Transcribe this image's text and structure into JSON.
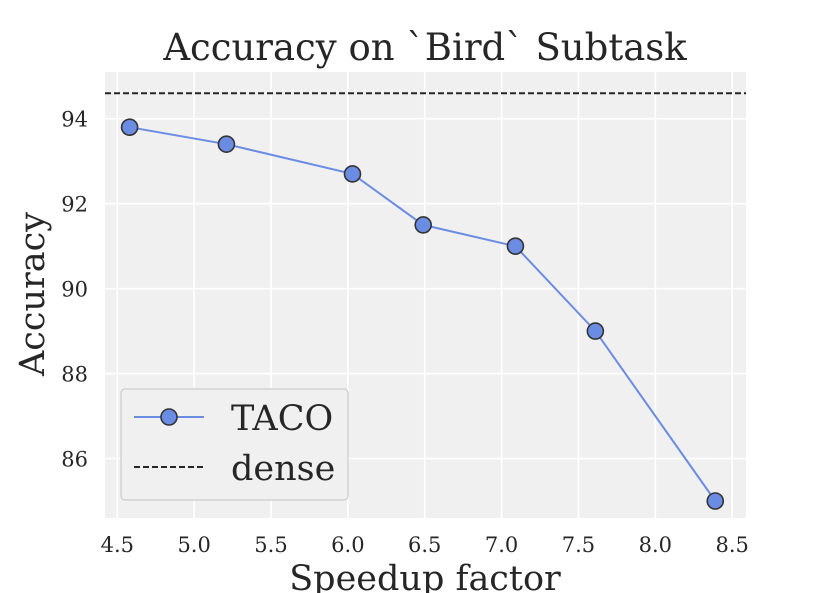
{
  "chart_data": {
    "type": "line",
    "title": "Accuracy on `Bird` Subtask",
    "xlabel": "Speedup factor",
    "ylabel": "Accuracy",
    "xlim": [
      4.42,
      8.59
    ],
    "ylim": [
      84.6,
      95.1
    ],
    "xticks": [
      4.5,
      5.0,
      5.5,
      6.0,
      6.5,
      7.0,
      7.5,
      8.0,
      8.5
    ],
    "xtick_labels": [
      "4.5",
      "5.0",
      "5.5",
      "6.0",
      "6.5",
      "7.0",
      "7.5",
      "8.0",
      "8.5"
    ],
    "yticks": [
      86,
      88,
      90,
      92,
      94
    ],
    "ytick_labels": [
      "86",
      "88",
      "90",
      "92",
      "94"
    ],
    "grid": true,
    "legend_position": "lower-left",
    "series": [
      {
        "name": "TACO",
        "x": [
          4.58,
          5.21,
          6.03,
          6.49,
          7.09,
          7.61,
          8.39
        ],
        "y": [
          93.8,
          93.4,
          92.7,
          91.5,
          91.0,
          89.0,
          85.0
        ],
        "color": "#6b8ce3",
        "marker_edge": "#333333",
        "style": "solid-with-circles"
      },
      {
        "name": "dense",
        "y": 94.6,
        "color": "#262626",
        "style": "dashed-horizontal"
      }
    ],
    "background": "#f0f0f0",
    "grid_color": "#ffffff"
  }
}
